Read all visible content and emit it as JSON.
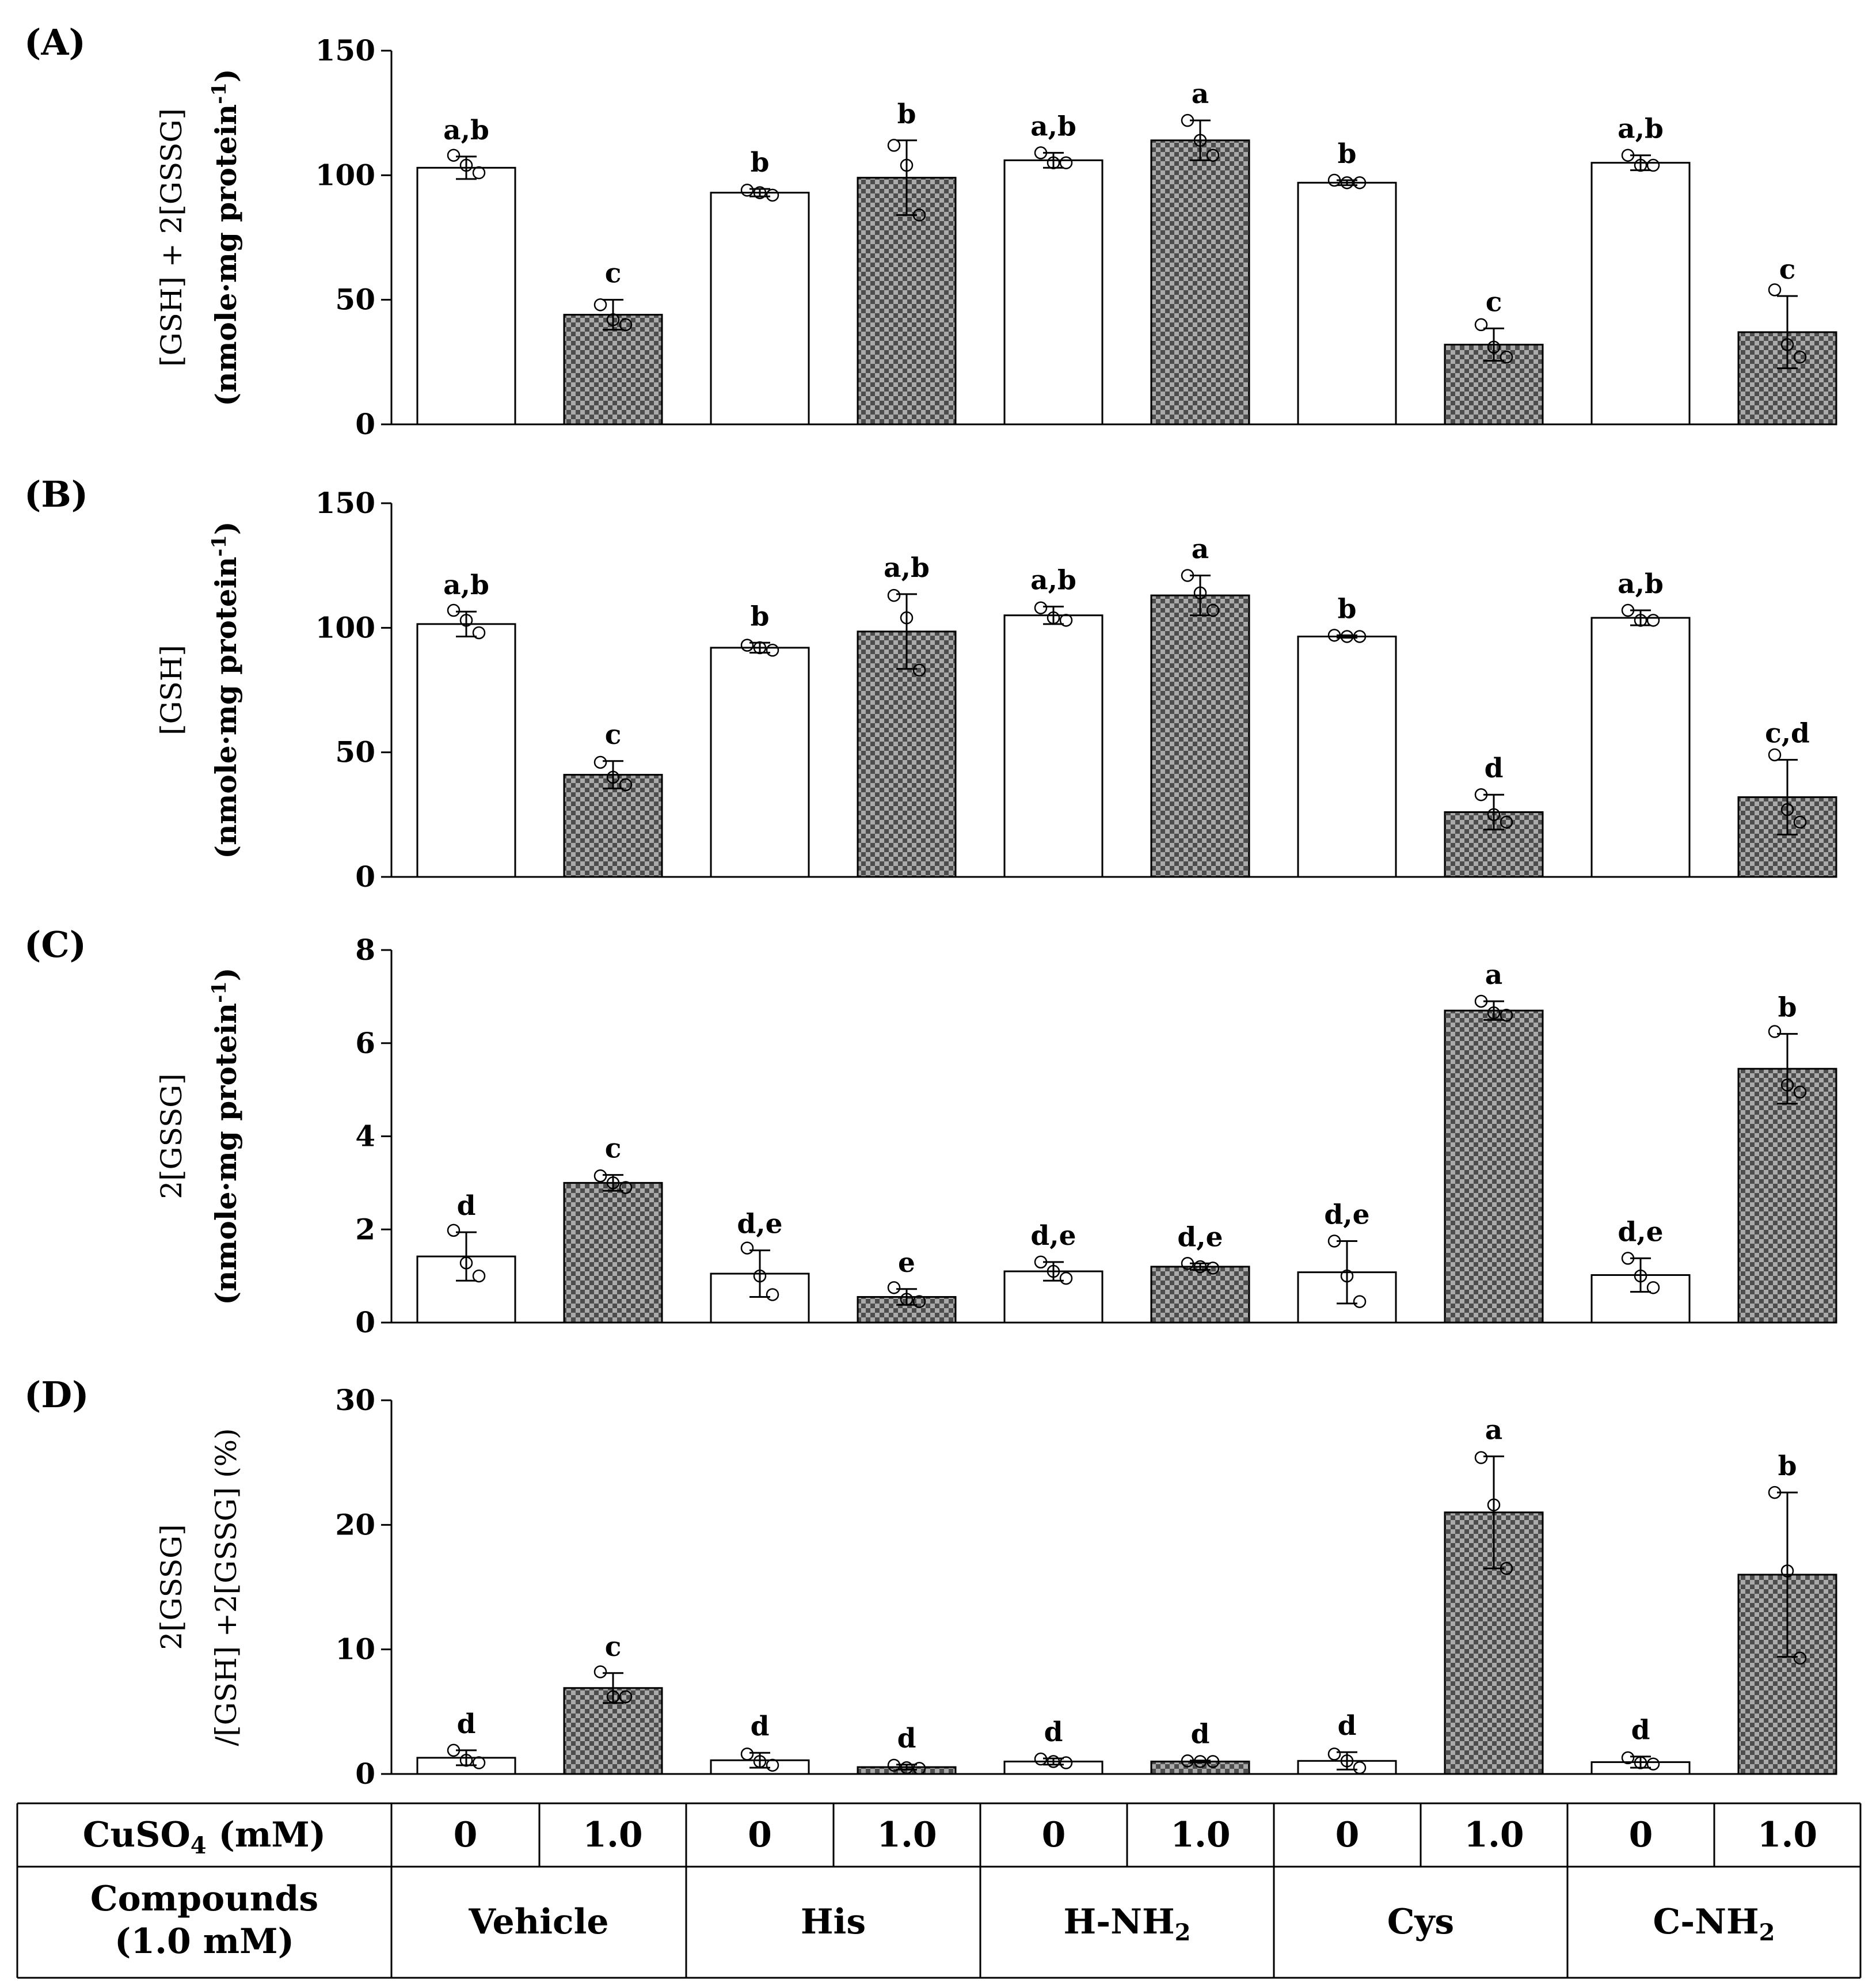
{
  "chart_data": [
    {
      "panel_label": "(A)",
      "type": "bar",
      "ylabel": [
        "[GSH] + 2[GSSG]",
        "(nmole·mg protein",
        "-1",
        ")"
      ],
      "ylim": [
        0,
        150
      ],
      "yticks": [
        "0",
        "50",
        "100",
        "150"
      ],
      "values": [
        103,
        44,
        93,
        99,
        106,
        114,
        97,
        32,
        105,
        37
      ],
      "errors": [
        4.5,
        6,
        1.5,
        15,
        3,
        8,
        1,
        6.5,
        3,
        14.5
      ],
      "letters": [
        "a,b",
        "c",
        "b",
        "b",
        "a,b",
        "a",
        "b",
        "c",
        "a,b",
        "c"
      ],
      "points": [
        [
          108,
          104,
          101
        ],
        [
          48,
          42,
          40
        ],
        [
          94,
          93,
          92
        ],
        [
          112,
          104,
          84
        ],
        [
          109,
          105,
          105
        ],
        [
          122,
          114,
          108
        ],
        [
          98,
          97,
          97
        ],
        [
          40,
          31,
          27
        ],
        [
          108,
          104,
          104
        ],
        [
          54,
          32,
          27
        ]
      ]
    },
    {
      "panel_label": "(B)",
      "type": "bar",
      "ylabel": [
        "[GSH]",
        "(nmole·mg protein",
        "-1",
        ")"
      ],
      "ylim": [
        0,
        150
      ],
      "yticks": [
        "0",
        "50",
        "100",
        "150"
      ],
      "values": [
        101.5,
        41,
        92,
        98.5,
        105,
        113,
        96.5,
        26,
        104,
        32
      ],
      "errors": [
        5,
        5.5,
        2,
        15,
        3.5,
        8,
        0.5,
        7,
        3,
        15
      ],
      "letters": [
        "a,b",
        "c",
        "b",
        "a,b",
        "a,b",
        "a",
        "b",
        "d",
        "a,b",
        "c,d"
      ],
      "points": [
        [
          107,
          103,
          98
        ],
        [
          46,
          40,
          37
        ],
        [
          93,
          92,
          91
        ],
        [
          113,
          104,
          83
        ],
        [
          108,
          104,
          103
        ],
        [
          121,
          114,
          107
        ],
        [
          97,
          96.5,
          96.5
        ],
        [
          33,
          25,
          22
        ],
        [
          107,
          103,
          103
        ],
        [
          49,
          27,
          22
        ]
      ]
    },
    {
      "panel_label": "(C)",
      "type": "bar",
      "ylabel": [
        "2[GSSG]",
        "(nmole·mg protein",
        "-1",
        ")"
      ],
      "ylim": [
        0,
        8
      ],
      "yticks": [
        "0",
        "2",
        "4",
        "6",
        "8"
      ],
      "values": [
        1.42,
        3.0,
        1.05,
        0.55,
        1.1,
        1.2,
        1.08,
        6.7,
        1.02,
        5.45
      ],
      "errors": [
        0.52,
        0.17,
        0.5,
        0.17,
        0.2,
        0.07,
        0.67,
        0.2,
        0.36,
        0.75
      ],
      "letters": [
        "d",
        "c",
        "d,e",
        "e",
        "d,e",
        "d,e",
        "d,e",
        "a",
        "d,e",
        "b"
      ],
      "points": [
        [
          1.98,
          1.28,
          1.0
        ],
        [
          3.15,
          3.0,
          2.9
        ],
        [
          1.6,
          1.0,
          0.6
        ],
        [
          0.75,
          0.5,
          0.45
        ],
        [
          1.3,
          1.1,
          0.95
        ],
        [
          1.27,
          1.2,
          1.17
        ],
        [
          1.75,
          1.0,
          0.45
        ],
        [
          6.9,
          6.65,
          6.6
        ],
        [
          1.38,
          1.0,
          0.75
        ],
        [
          6.25,
          5.1,
          4.95
        ]
      ]
    },
    {
      "panel_label": "(D)",
      "type": "bar",
      "ylabel": [
        "2[GSSG]",
        "/[GSH] +2[GSSG] (%)"
      ],
      "ylim": [
        0,
        30
      ],
      "yticks": [
        "0",
        "10",
        "20",
        "30"
      ],
      "values": [
        1.3,
        6.9,
        1.1,
        0.55,
        1.0,
        1.0,
        1.05,
        21.0,
        0.95,
        16.0
      ],
      "errors": [
        0.6,
        1.2,
        0.6,
        0.2,
        0.25,
        0.08,
        0.7,
        4.5,
        0.45,
        6.6
      ],
      "letters": [
        "d",
        "c",
        "d",
        "d",
        "d",
        "d",
        "d",
        "a",
        "d",
        "b"
      ],
      "points": [
        [
          1.9,
          1.1,
          0.9
        ],
        [
          8.2,
          6.2,
          6.2
        ],
        [
          1.6,
          1.0,
          0.7
        ],
        [
          0.7,
          0.5,
          0.45
        ],
        [
          1.2,
          1.0,
          0.9
        ],
        [
          1.05,
          1.0,
          1.0
        ],
        [
          1.6,
          1.05,
          0.5
        ],
        [
          25.4,
          21.6,
          16.5
        ],
        [
          1.3,
          0.9,
          0.8
        ],
        [
          22.6,
          16.3,
          9.3
        ]
      ]
    }
  ],
  "table": {
    "row1_label": "CuSO",
    "row1_label_sub": "4",
    "row1_label_suffix": " (mM)",
    "cuso4_values": [
      "0",
      "1.0",
      "0",
      "1.0",
      "0",
      "1.0",
      "0",
      "1.0",
      "0",
      "1.0"
    ],
    "row2_label_line1": "Compounds",
    "row2_label_line2": "(1.0 mM)",
    "compounds": [
      {
        "name": "Vehicle",
        "sub": ""
      },
      {
        "name": "His",
        "sub": ""
      },
      {
        "name": "H-NH",
        "sub": "2"
      },
      {
        "name": "Cys",
        "sub": ""
      },
      {
        "name": "C-NH",
        "sub": "2"
      }
    ]
  },
  "colors": {
    "bar_control": "#ffffff",
    "bar_cu_dark": "#4d4d4d",
    "bar_cu_light": "#aaaaaa",
    "stroke": "#000000"
  }
}
